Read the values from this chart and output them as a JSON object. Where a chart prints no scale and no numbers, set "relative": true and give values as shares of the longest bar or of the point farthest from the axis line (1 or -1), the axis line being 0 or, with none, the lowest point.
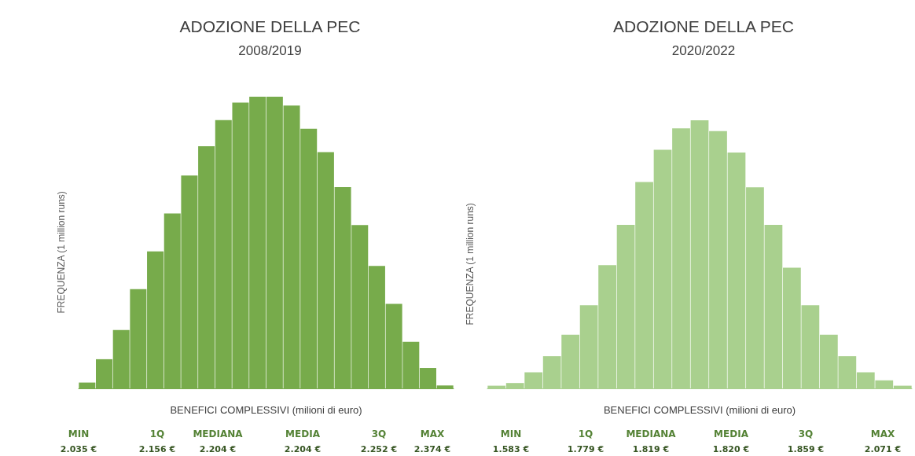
{
  "chart_data": [
    {
      "type": "bar",
      "relative": true,
      "title": "ADOZIONE DELLA PEC",
      "subtitle": "2008/2019",
      "xlabel": "BENEFICI COMPLESSIVI (milioni di euro)",
      "ylabel": "FREQUENZA (1 million runs)",
      "categories": [
        null,
        null,
        null,
        null,
        null,
        null,
        null,
        null,
        null,
        null,
        null,
        null,
        null,
        null,
        null,
        null,
        null,
        null,
        null,
        null,
        null,
        null
      ],
      "values": [
        0.02,
        0.1,
        0.2,
        0.34,
        0.47,
        0.6,
        0.73,
        0.83,
        0.92,
        0.98,
        1.0,
        1.0,
        0.97,
        0.89,
        0.81,
        0.69,
        0.56,
        0.42,
        0.29,
        0.16,
        0.07,
        0.01
      ],
      "color": "#77ab4b",
      "annotations": [
        "MIN",
        "1Q",
        "MEDIANA",
        "MEDIA",
        "3Q",
        "MAX",
        "2.035 €",
        "2.156 €",
        "2.204 €",
        "2.204 €",
        "2.252 €",
        "2.374 €"
      ]
    },
    {
      "type": "bar",
      "relative": true,
      "title": "ADOZIONE DELLA PEC",
      "subtitle": "2020/2022",
      "xlabel": "BENEFICI COMPLESSIVI (milioni di euro)",
      "ylabel": "FREQUENZA (1 million runs)",
      "categories": [
        null,
        null,
        null,
        null,
        null,
        null,
        null,
        null,
        null,
        null,
        null,
        null,
        null,
        null,
        null,
        null,
        null,
        null,
        null,
        null,
        null,
        null,
        null
      ],
      "values": [
        0.01,
        0.02,
        0.06,
        0.12,
        0.2,
        0.31,
        0.46,
        0.61,
        0.77,
        0.89,
        0.97,
        1.0,
        0.96,
        0.88,
        0.75,
        0.61,
        0.45,
        0.31,
        0.2,
        0.12,
        0.06,
        0.03,
        0.01
      ],
      "color": "#a9d08e",
      "annotations": [
        "MIN",
        "1Q",
        "MEDIANA",
        "MEDIA",
        "3Q",
        "MAX",
        "1.583 €",
        "1.779 €",
        "1.819 €",
        "1.820 €",
        "1.859 €",
        "2.071 €"
      ]
    }
  ]
}
